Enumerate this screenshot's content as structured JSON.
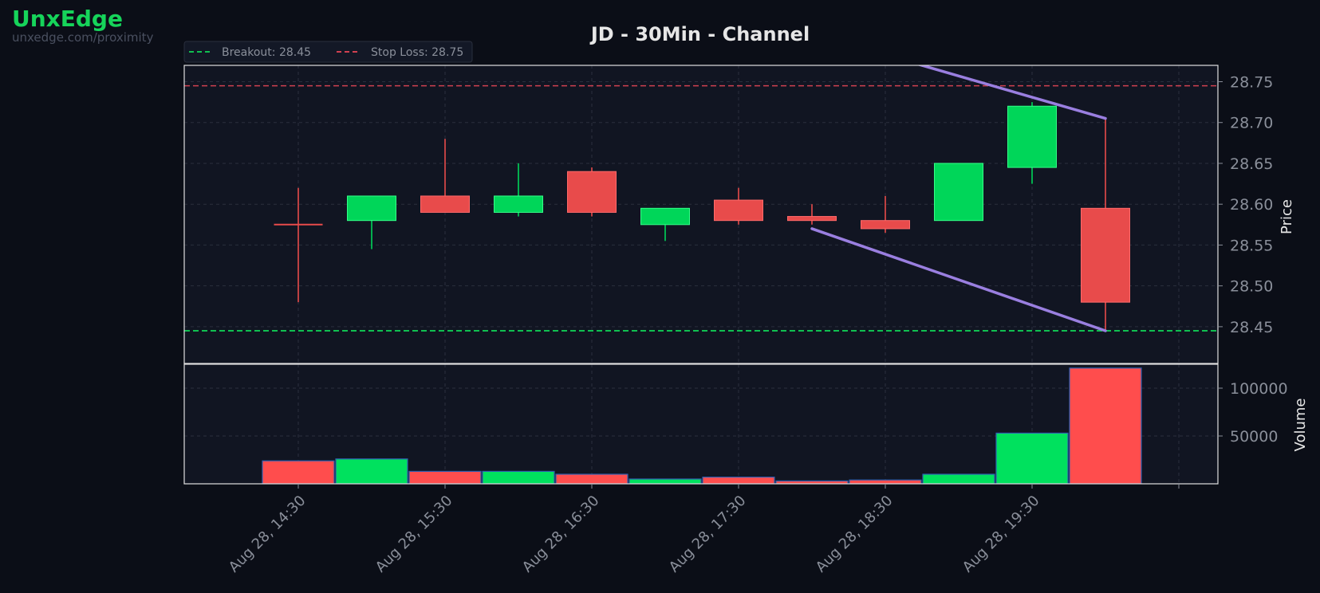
{
  "brand": {
    "name": "UnxEdge",
    "url": "unxedge.com/proximity"
  },
  "colors": {
    "background": "#0b0e17",
    "panel": "#111522",
    "up": "#00d659",
    "down": "#e84b4b",
    "volume_up": "#00e15e",
    "volume_down": "#ff4d4d",
    "volume_edge": "#2f5fb0",
    "channel": "#9a7fe0",
    "breakout": "#10c050",
    "stop_loss": "#d04050",
    "grid": "#2a2f3d",
    "axis_text": "#8a8f9a",
    "title_text": "#e6e6e6"
  },
  "chart_data": {
    "type": "candlestick",
    "title": "JD - 30Min - Channel",
    "price_axis_label": "Price",
    "volume_axis_label": "Volume",
    "price_ticks": [
      "28.45",
      "28.50",
      "28.55",
      "28.60",
      "28.65",
      "28.70",
      "28.75"
    ],
    "volume_ticks": [
      "50000",
      "100000"
    ],
    "x_tick_labels": [
      "Aug 28, 14:30",
      "Aug 28, 15:30",
      "Aug 28, 16:30",
      "Aug 28, 17:30",
      "Aug 28, 18:30",
      "Aug 28, 19:30"
    ],
    "price_range": [
      28.405,
      28.77
    ],
    "volume_range": [
      0,
      125000
    ],
    "grid": true,
    "legend": {
      "placement": "top-left",
      "items": [
        {
          "label": "Breakout: 28.45",
          "style": "dashed",
          "color": "#10c050"
        },
        {
          "label": "Stop Loss: 28.75",
          "style": "dashed",
          "color": "#d04050"
        }
      ]
    },
    "levels": {
      "breakout": 28.445,
      "stop_loss": 28.745
    },
    "candles": [
      {
        "time": "14:30",
        "open": 28.575,
        "high": 28.62,
        "low": 28.48,
        "close": 28.575,
        "volume": 24000
      },
      {
        "time": "15:00",
        "open": 28.58,
        "high": 28.61,
        "low": 28.545,
        "close": 28.61,
        "volume": 26000
      },
      {
        "time": "15:30",
        "open": 28.61,
        "high": 28.68,
        "low": 28.59,
        "close": 28.59,
        "volume": 13000
      },
      {
        "time": "16:00",
        "open": 28.59,
        "high": 28.65,
        "low": 28.585,
        "close": 28.61,
        "volume": 13000
      },
      {
        "time": "16:30",
        "open": 28.64,
        "high": 28.645,
        "low": 28.585,
        "close": 28.59,
        "volume": 10000
      },
      {
        "time": "17:00",
        "open": 28.575,
        "high": 28.595,
        "low": 28.555,
        "close": 28.595,
        "volume": 5000
      },
      {
        "time": "17:30",
        "open": 28.605,
        "high": 28.62,
        "low": 28.575,
        "close": 28.58,
        "volume": 7000
      },
      {
        "time": "18:00",
        "open": 28.585,
        "high": 28.6,
        "low": 28.575,
        "close": 28.58,
        "volume": 3000
      },
      {
        "time": "18:30",
        "open": 28.58,
        "high": 28.61,
        "low": 28.565,
        "close": 28.57,
        "volume": 4000
      },
      {
        "time": "19:00",
        "open": 28.58,
        "high": 28.65,
        "low": 28.58,
        "close": 28.65,
        "volume": 10000
      },
      {
        "time": "19:30",
        "open": 28.645,
        "high": 28.725,
        "low": 28.625,
        "close": 28.72,
        "volume": 53000
      },
      {
        "time": "20:00",
        "open": 28.595,
        "high": 28.705,
        "low": 28.445,
        "close": 28.48,
        "volume": 121000
      }
    ],
    "channel_lines": [
      {
        "from": {
          "time": "18:00",
          "price": 28.57
        },
        "to": {
          "time": "20:00",
          "price": 28.445
        }
      },
      {
        "from": {
          "time": "17:30",
          "price": 28.835
        },
        "to": {
          "time": "20:00",
          "price": 28.705
        }
      }
    ]
  }
}
